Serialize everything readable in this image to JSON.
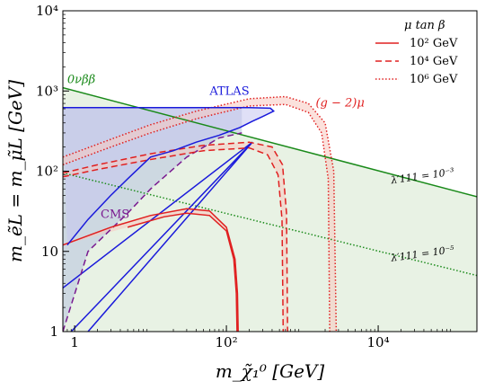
{
  "chart_data": {
    "type": "line",
    "xlabel": "m_χ̃₁⁰ [GeV]",
    "ylabel": "m_ẽL = m_μ̃L [GeV]",
    "xscale": "log",
    "yscale": "log",
    "xlim": [
      0.7,
      200000
    ],
    "ylim": [
      1,
      10000
    ],
    "x_ticks": [
      {
        "v": 1,
        "label": "1"
      },
      {
        "v": 100,
        "label": "10²"
      },
      {
        "v": 10000,
        "label": "10⁴"
      }
    ],
    "y_ticks": [
      {
        "v": 1,
        "label": "1"
      },
      {
        "v": 10,
        "label": "10"
      },
      {
        "v": 100,
        "label": "10²"
      },
      {
        "v": 1000,
        "label": "10³"
      },
      {
        "v": 10000,
        "label": "10⁴"
      }
    ],
    "legend": {
      "title": "μ tan β",
      "placement": "top-right",
      "entries": [
        {
          "label": "10² GeV",
          "style": "solid"
        },
        {
          "label": "10⁴ GeV",
          "style": "dashed"
        },
        {
          "label": "10⁶ GeV",
          "style": "dotted"
        }
      ]
    },
    "colors": {
      "atlas": "#1a1adb",
      "atlas_fill": "#c7c7f0",
      "cms": "#7a1a90",
      "cms_fill": "#c2cde0",
      "g2": "#e02020",
      "g2_fill": "#f7c8c0",
      "nubb": "#1a8a1a",
      "green_region": "#e8f2e4"
    },
    "annotations": [
      {
        "text": "ATLAS",
        "x": 60,
        "y": 900,
        "color": "#1a1adb"
      },
      {
        "text": "CMS",
        "x": 2.2,
        "y": 26,
        "color": "#7a1a90"
      },
      {
        "text": "(g − 2)μ",
        "x": 1500,
        "y": 640,
        "color": "#e02020"
      },
      {
        "text": "0νββ",
        "x": 0.8,
        "y": 1250,
        "color": "#1a8a1a"
      },
      {
        "text": "λ′111 = 10⁻³",
        "x": 15000,
        "y": 70,
        "color": "#000000"
      },
      {
        "text": "λ′111 = 10⁻⁵",
        "x": 15000,
        "y": 7.5,
        "color": "#000000"
      }
    ],
    "series": [
      {
        "id": "nubb_line",
        "color": "#1a8a1a",
        "style": "solid",
        "points": [
          [
            0.7,
            1100
          ],
          [
            200000,
            48
          ]
        ]
      },
      {
        "id": "lambda_1e-3",
        "color": "#1a8a1a",
        "style": "dotted",
        "points": [
          [
            0.7,
            95
          ],
          [
            200000,
            5
          ]
        ]
      },
      {
        "id": "atlas_left_line",
        "color": "#1a1adb",
        "style": "solid",
        "points": [
          [
            0.7,
            3.5
          ],
          [
            220,
            230
          ]
        ]
      },
      {
        "id": "atlas_mid_line",
        "color": "#1a1adb",
        "style": "solid",
        "points": [
          [
            0.9,
            1
          ],
          [
            220,
            230
          ]
        ]
      },
      {
        "id": "atlas_right_line",
        "color": "#1a1adb",
        "style": "solid",
        "points": [
          [
            1.5,
            1
          ],
          [
            220,
            230
          ]
        ]
      },
      {
        "id": "cms_dashed",
        "color": "#7a1a90",
        "style": "dashed",
        "points": [
          [
            0.7,
            1
          ],
          [
            1.5,
            10
          ],
          [
            5,
            30
          ],
          [
            10,
            60
          ],
          [
            30,
            150
          ],
          [
            80,
            260
          ],
          [
            160,
            300
          ]
        ]
      },
      {
        "id": "g2_solid_upper",
        "color": "#e02020",
        "style": "solid",
        "points": [
          [
            0.7,
            12
          ],
          [
            3,
            20
          ],
          [
            10,
            28
          ],
          [
            30,
            34
          ],
          [
            60,
            32
          ],
          [
            100,
            20
          ],
          [
            130,
            8
          ],
          [
            140,
            3
          ],
          [
            143,
            1
          ]
        ]
      },
      {
        "id": "g2_solid_lower",
        "color": "#e02020",
        "style": "solid",
        "points": [
          [
            5,
            20
          ],
          [
            15,
            27
          ],
          [
            30,
            30
          ],
          [
            60,
            28
          ],
          [
            100,
            18
          ],
          [
            125,
            8
          ],
          [
            135,
            3
          ],
          [
            138,
            1
          ]
        ]
      },
      {
        "id": "g2_dashed_upper",
        "color": "#e02020",
        "style": "dashed",
        "points": [
          [
            0.7,
            95
          ],
          [
            2,
            120
          ],
          [
            10,
            165
          ],
          [
            50,
            210
          ],
          [
            200,
            230
          ],
          [
            400,
            200
          ],
          [
            550,
            120
          ],
          [
            620,
            30
          ],
          [
            640,
            1
          ]
        ]
      },
      {
        "id": "g2_dashed_lower",
        "color": "#e02020",
        "style": "dashed",
        "points": [
          [
            0.7,
            85
          ],
          [
            2,
            105
          ],
          [
            10,
            140
          ],
          [
            50,
            180
          ],
          [
            200,
            195
          ],
          [
            350,
            160
          ],
          [
            480,
            90
          ],
          [
            540,
            25
          ],
          [
            560,
            1
          ]
        ]
      },
      {
        "id": "g2_dotted_upper",
        "color": "#e02020",
        "style": "dotted",
        "points": [
          [
            0.7,
            150
          ],
          [
            3,
            250
          ],
          [
            10,
            380
          ],
          [
            40,
            560
          ],
          [
            200,
            800
          ],
          [
            600,
            850
          ],
          [
            1200,
            700
          ],
          [
            2000,
            400
          ],
          [
            2600,
            100
          ],
          [
            2800,
            1
          ]
        ]
      },
      {
        "id": "g2_dotted_lower",
        "color": "#e02020",
        "style": "dotted",
        "points": [
          [
            0.7,
            120
          ],
          [
            3,
            200
          ],
          [
            10,
            300
          ],
          [
            40,
            450
          ],
          [
            200,
            650
          ],
          [
            600,
            680
          ],
          [
            1200,
            540
          ],
          [
            1800,
            300
          ],
          [
            2200,
            80
          ],
          [
            2300,
            1
          ]
        ]
      },
      {
        "id": "atlas_boundary",
        "color": "#1a1adb",
        "style": "solid",
        "points": [
          [
            0.7,
            620
          ],
          [
            200,
            620
          ],
          [
            380,
            610
          ],
          [
            420,
            560
          ],
          [
            300,
            480
          ],
          [
            220,
            420
          ],
          [
            150,
            350
          ],
          [
            80,
            280
          ],
          [
            40,
            230
          ],
          [
            20,
            180
          ],
          [
            10,
            150
          ],
          [
            5,
            80
          ],
          [
            3,
            50
          ],
          [
            1.5,
            25
          ],
          [
            0.8,
            12
          ]
        ]
      }
    ]
  }
}
